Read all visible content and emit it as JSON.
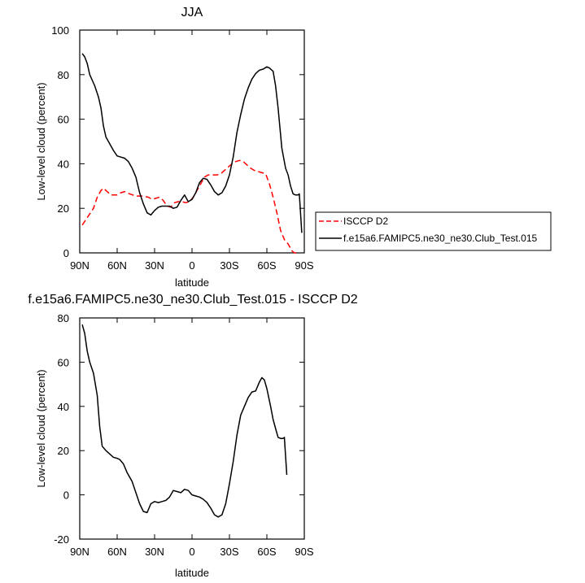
{
  "chart_data": [
    {
      "type": "line",
      "title": "JJA",
      "xlabel": "latitude",
      "ylabel": "Low-level cloud (percent)",
      "xlim": [
        90,
        -90
      ],
      "ylim": [
        0,
        100
      ],
      "x_ticks": [
        {
          "value": 90,
          "label": "90N"
        },
        {
          "value": 60,
          "label": "60N"
        },
        {
          "value": 30,
          "label": "30N"
        },
        {
          "value": 0,
          "label": "0"
        },
        {
          "value": -30,
          "label": "30S"
        },
        {
          "value": -60,
          "label": "60S"
        },
        {
          "value": -90,
          "label": "90S"
        }
      ],
      "y_ticks": [
        {
          "value": 0,
          "label": "0"
        },
        {
          "value": 20,
          "label": "20"
        },
        {
          "value": 40,
          "label": "40"
        },
        {
          "value": 60,
          "label": "60"
        },
        {
          "value": 80,
          "label": "80"
        },
        {
          "value": 100,
          "label": "100"
        }
      ],
      "legend": "right",
      "series": [
        {
          "name": "ISCCP D2",
          "color": "#ff0000",
          "dash": true,
          "points": [
            [
              88,
              12.5
            ],
            [
              85,
              15
            ],
            [
              82,
              17.5
            ],
            [
              79,
              20
            ],
            [
              76,
              25
            ],
            [
              73,
              28
            ],
            [
              71,
              29
            ],
            [
              68,
              27.5
            ],
            [
              65,
              26
            ],
            [
              60,
              26
            ],
            [
              57,
              27
            ],
            [
              54,
              27.5
            ],
            [
              50,
              26.5
            ],
            [
              45,
              25.5
            ],
            [
              40,
              25.5
            ],
            [
              35,
              25
            ],
            [
              32,
              24
            ],
            [
              29,
              24.5
            ],
            [
              26,
              25
            ],
            [
              23,
              23.5
            ],
            [
              20,
              21
            ],
            [
              17,
              20.5
            ],
            [
              14,
              22.5
            ],
            [
              11,
              23
            ],
            [
              8,
              23
            ],
            [
              5,
              22.5
            ],
            [
              2,
              23
            ],
            [
              -1,
              25
            ],
            [
              -4,
              28
            ],
            [
              -7,
              31
            ],
            [
              -10,
              34
            ],
            [
              -13,
              35
            ],
            [
              -16,
              35
            ],
            [
              -20,
              35
            ],
            [
              -23,
              35.5
            ],
            [
              -26,
              37
            ],
            [
              -29,
              38.5
            ],
            [
              -32,
              40
            ],
            [
              -35,
              41
            ],
            [
              -38,
              41.5
            ],
            [
              -41,
              41
            ],
            [
              -44,
              39.5
            ],
            [
              -47,
              38
            ],
            [
              -50,
              37
            ],
            [
              -53,
              36.5
            ],
            [
              -56,
              36
            ],
            [
              -59,
              35.5
            ],
            [
              -62,
              31
            ],
            [
              -65,
              25
            ],
            [
              -68,
              18
            ],
            [
              -71,
              10
            ],
            [
              -74,
              6
            ],
            [
              -77,
              4
            ],
            [
              -80,
              1
            ],
            [
              -82,
              0
            ],
            [
              -85,
              0
            ]
          ]
        },
        {
          "name": "f.e15a6.FAMIPC5.ne30_ne30.Club_Test.015",
          "color": "#000000",
          "dash": false,
          "points": [
            [
              88,
              89.5
            ],
            [
              86,
              88
            ],
            [
              84,
              85
            ],
            [
              82,
              80
            ],
            [
              78,
              75
            ],
            [
              75,
              70
            ],
            [
              73,
              65
            ],
            [
              71,
              57
            ],
            [
              69,
              52
            ],
            [
              66,
              49
            ],
            [
              63,
              46
            ],
            [
              60,
              43.5
            ],
            [
              57,
              43
            ],
            [
              54,
              42.5
            ],
            [
              51,
              41
            ],
            [
              48,
              38
            ],
            [
              45,
              34
            ],
            [
              42,
              27
            ],
            [
              39,
              22
            ],
            [
              36,
              18
            ],
            [
              33,
              17
            ],
            [
              30,
              19
            ],
            [
              27,
              20.5
            ],
            [
              24,
              21
            ],
            [
              21,
              21
            ],
            [
              18,
              21
            ],
            [
              15,
              20
            ],
            [
              12,
              20.5
            ],
            [
              9,
              23.5
            ],
            [
              6,
              26
            ],
            [
              3,
              23
            ],
            [
              0,
              24
            ],
            [
              -3,
              27
            ],
            [
              -6,
              31.5
            ],
            [
              -9,
              33.5
            ],
            [
              -12,
              33
            ],
            [
              -15,
              30.5
            ],
            [
              -18,
              27.5
            ],
            [
              -21,
              26
            ],
            [
              -24,
              27
            ],
            [
              -27,
              30
            ],
            [
              -30,
              35
            ],
            [
              -33,
              43
            ],
            [
              -36,
              54
            ],
            [
              -39,
              62
            ],
            [
              -42,
              69
            ],
            [
              -45,
              74
            ],
            [
              -48,
              78
            ],
            [
              -51,
              80.5
            ],
            [
              -54,
              82
            ],
            [
              -57,
              82.5
            ],
            [
              -60,
              83.5
            ],
            [
              -62,
              83
            ],
            [
              -65,
              81.5
            ],
            [
              -67,
              75
            ],
            [
              -69,
              65
            ],
            [
              -72,
              47
            ],
            [
              -75,
              38
            ],
            [
              -77,
              35
            ],
            [
              -79,
              30
            ],
            [
              -81,
              26.5
            ],
            [
              -83,
              26
            ],
            [
              -85,
              26
            ],
            [
              -86,
              26.5
            ],
            [
              -88,
              9
            ]
          ]
        }
      ]
    },
    {
      "type": "line",
      "title": "f.e15a6.FAMIPC5.ne30_ne30.Club_Test.015 - ISCCP D2",
      "xlabel": "latitude",
      "ylabel": "Low-level cloud (percent)",
      "xlim": [
        90,
        -90
      ],
      "ylim": [
        -20,
        80
      ],
      "x_ticks": [
        {
          "value": 90,
          "label": "90N"
        },
        {
          "value": 60,
          "label": "60N"
        },
        {
          "value": 30,
          "label": "30N"
        },
        {
          "value": 0,
          "label": "0"
        },
        {
          "value": -30,
          "label": "30S"
        },
        {
          "value": -60,
          "label": "60S"
        },
        {
          "value": -90,
          "label": "90S"
        }
      ],
      "y_ticks": [
        {
          "value": -20,
          "label": "-20"
        },
        {
          "value": 0,
          "label": "0"
        },
        {
          "value": 20,
          "label": "20"
        },
        {
          "value": 40,
          "label": "40"
        },
        {
          "value": 60,
          "label": "60"
        },
        {
          "value": 80,
          "label": "80"
        }
      ],
      "series": [
        {
          "color": "#000000",
          "dash": false,
          "points": [
            [
              88,
              77
            ],
            [
              86,
              73
            ],
            [
              84,
              65
            ],
            [
              82,
              60
            ],
            [
              79,
              55
            ],
            [
              76,
              45
            ],
            [
              74,
              31
            ],
            [
              72,
              22
            ],
            [
              69,
              20
            ],
            [
              66,
              18.5
            ],
            [
              63,
              17
            ],
            [
              60,
              16.5
            ],
            [
              58,
              16
            ],
            [
              55,
              14
            ],
            [
              52,
              10
            ],
            [
              48,
              6
            ],
            [
              45,
              1
            ],
            [
              42,
              -4
            ],
            [
              39,
              -7.5
            ],
            [
              36,
              -8
            ],
            [
              33,
              -4
            ],
            [
              30,
              -3
            ],
            [
              27,
              -3.5
            ],
            [
              24,
              -3
            ],
            [
              21,
              -2.5
            ],
            [
              18,
              -1
            ],
            [
              15,
              2
            ],
            [
              12,
              1.5
            ],
            [
              9,
              1
            ],
            [
              6,
              2.5
            ],
            [
              3,
              2
            ],
            [
              0,
              0
            ],
            [
              -3,
              -0.5
            ],
            [
              -6,
              -1
            ],
            [
              -9,
              -2
            ],
            [
              -12,
              -3.5
            ],
            [
              -15,
              -6
            ],
            [
              -18,
              -9
            ],
            [
              -21,
              -10
            ],
            [
              -24,
              -9
            ],
            [
              -27,
              -4
            ],
            [
              -30,
              5
            ],
            [
              -33,
              15
            ],
            [
              -36,
              27
            ],
            [
              -39,
              36
            ],
            [
              -42,
              40
            ],
            [
              -45,
              44
            ],
            [
              -48,
              46.5
            ],
            [
              -51,
              47
            ],
            [
              -54,
              51
            ],
            [
              -56,
              53
            ],
            [
              -58,
              52
            ],
            [
              -60,
              48
            ],
            [
              -63,
              40
            ],
            [
              -65,
              34
            ],
            [
              -67,
              30
            ],
            [
              -69,
              26
            ],
            [
              -71,
              25.5
            ],
            [
              -73,
              25.5
            ],
            [
              -74,
              26
            ],
            [
              -76,
              9
            ]
          ]
        }
      ]
    }
  ]
}
